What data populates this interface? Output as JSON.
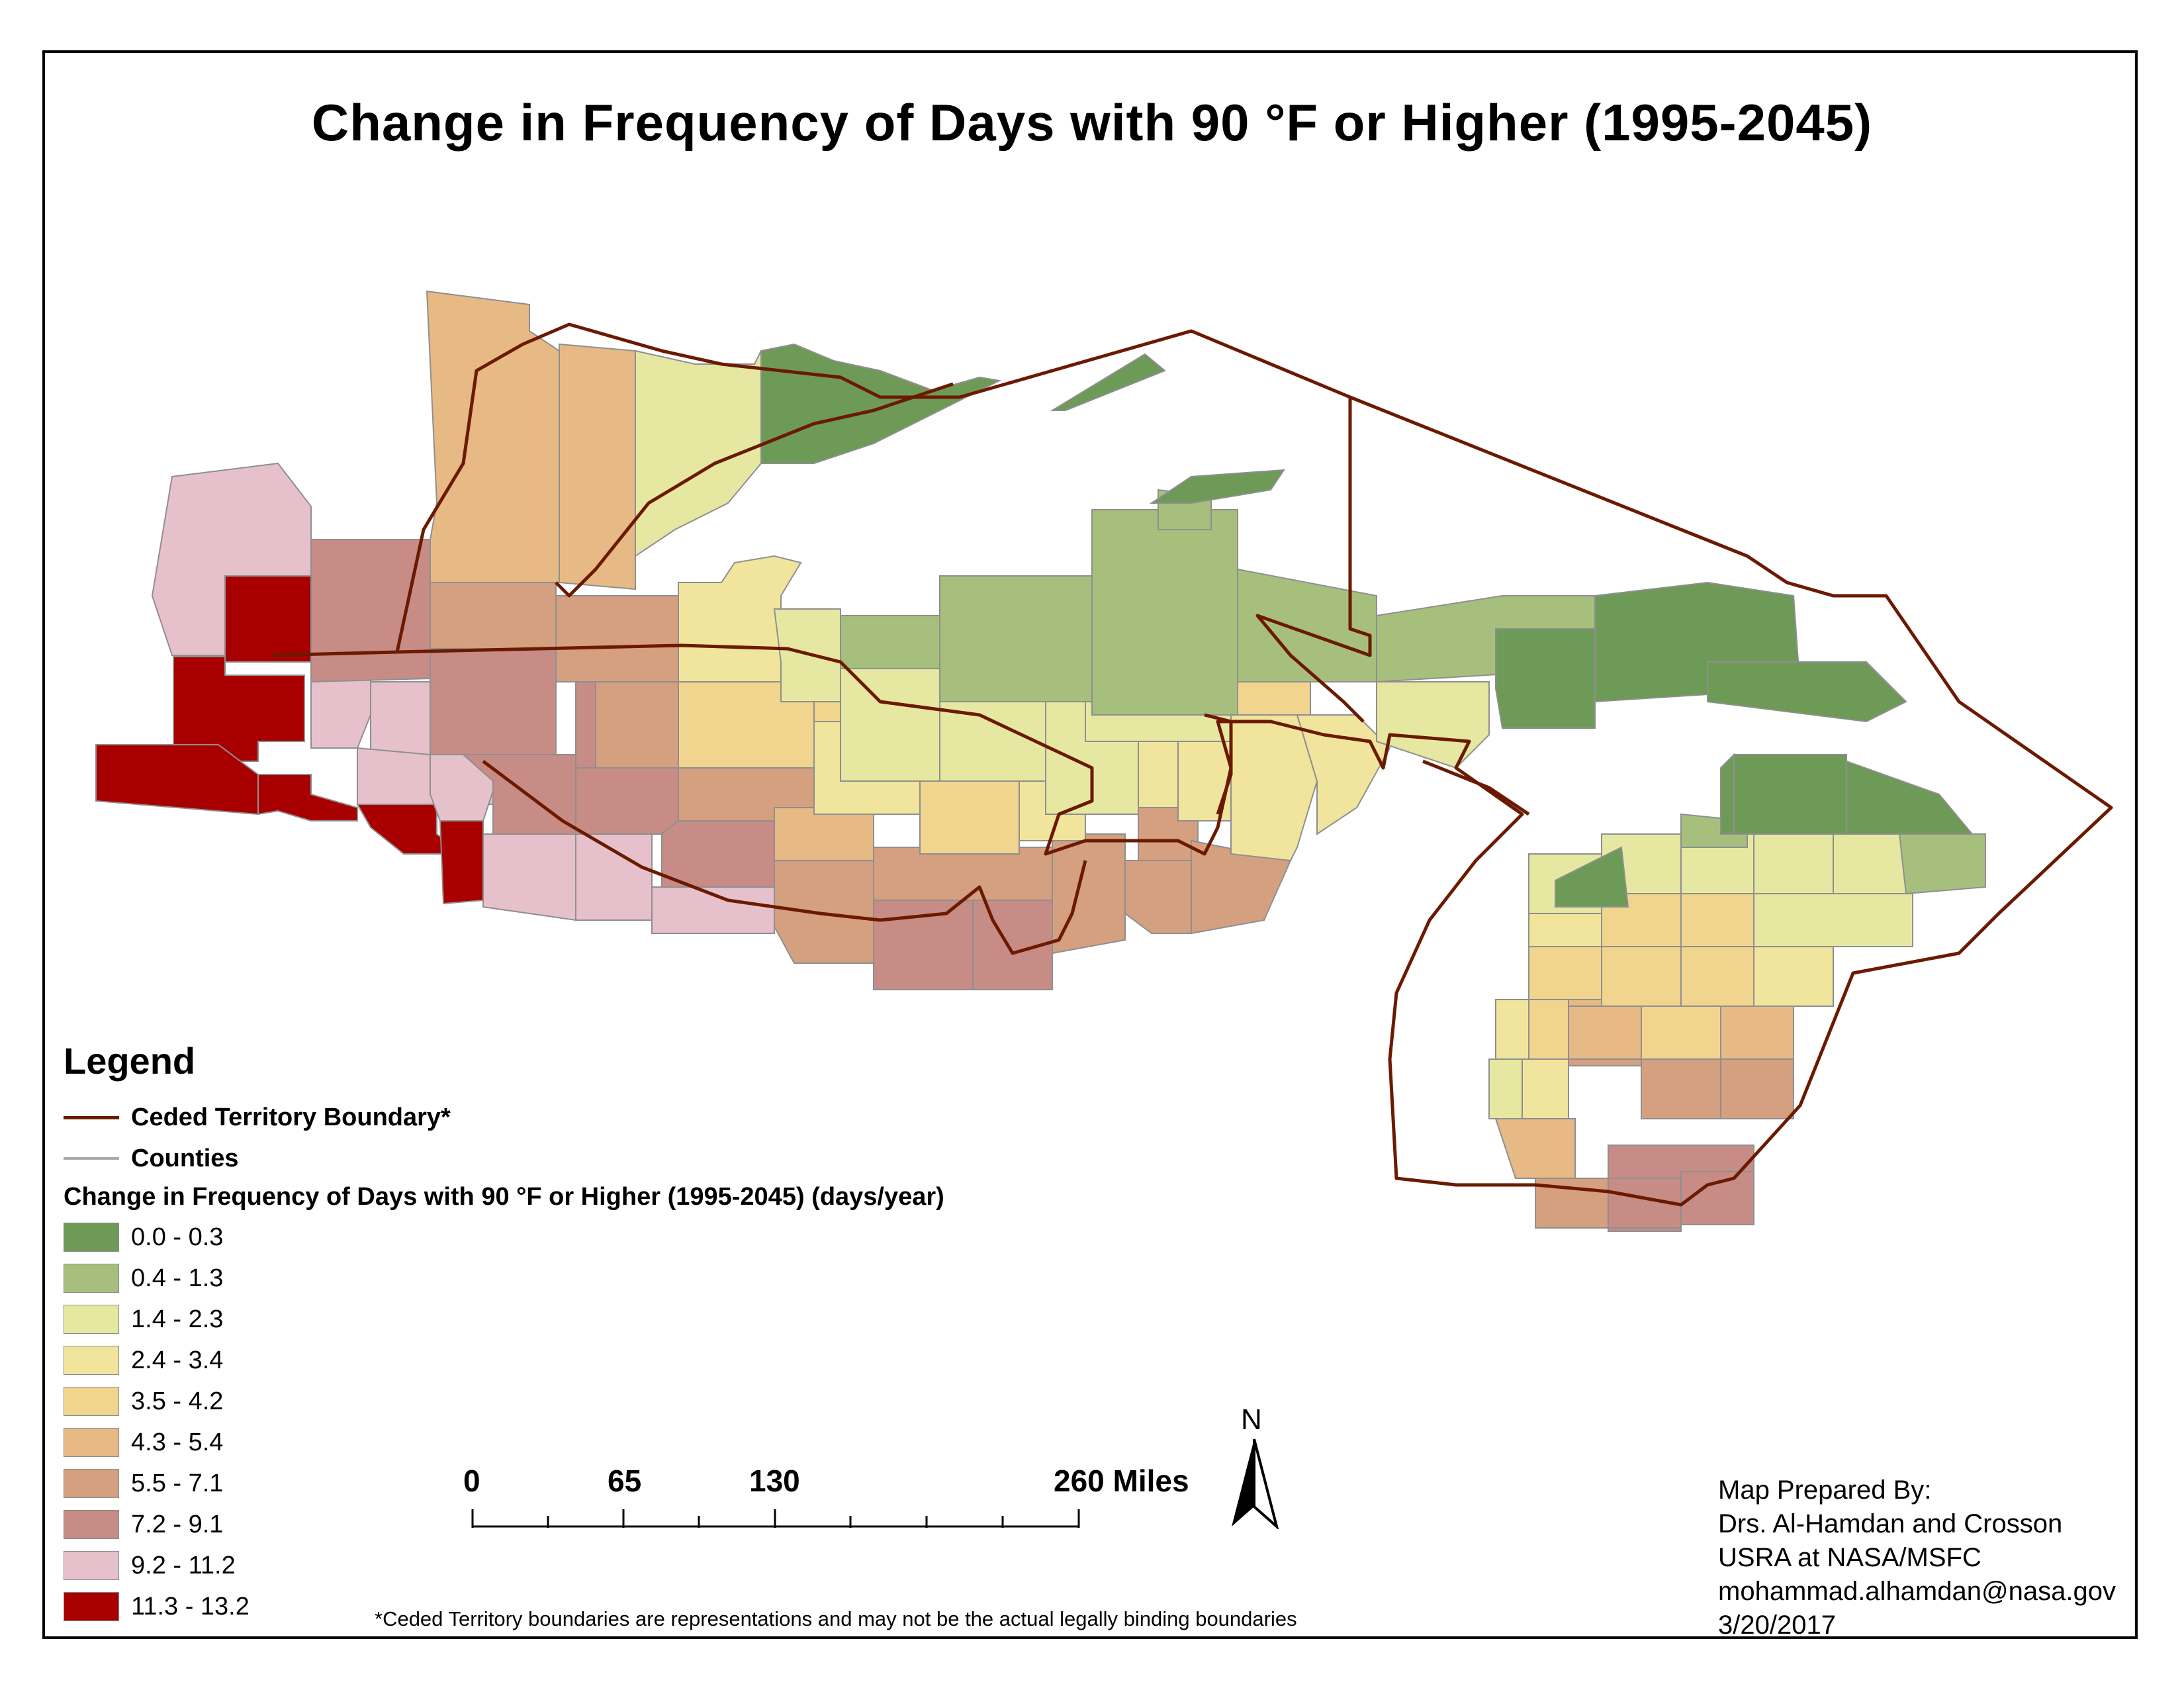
{
  "title": "Change in Frequency of Days with 90 °F or Higher (1995-2045)",
  "legend": {
    "heading": "Legend",
    "boundary_label": "Ceded Territory Boundary*",
    "counties_label": "Counties",
    "variable_label": "Change in Frequency of Days with 90 °F or Higher (1995-2045) (days/year)",
    "classes": [
      {
        "label": "0.0 - 0.3",
        "color": "#6e9a57"
      },
      {
        "label": "0.4 - 1.3",
        "color": "#a7bf7d"
      },
      {
        "label": "1.4 - 2.3",
        "color": "#e6e8a2"
      },
      {
        "label": "2.4 - 3.4",
        "color": "#f1e49c"
      },
      {
        "label": "3.5 - 4.2",
        "color": "#f1d58f"
      },
      {
        "label": "4.3 - 5.4",
        "color": "#e6b985"
      },
      {
        "label": "5.5 - 7.1",
        "color": "#d4a080"
      },
      {
        "label": "7.2 - 9.1",
        "color": "#c88c86"
      },
      {
        "label": "9.2 - 11.2",
        "color": "#e6c1cb"
      },
      {
        "label": "11.3 - 13.2",
        "color": "#a80000"
      }
    ]
  },
  "colors": {
    "boundary": "#6b1a00",
    "county_line": "#8f8f8f",
    "water": "#ffffff"
  },
  "scale_bar": {
    "ticks": [
      "0",
      "65",
      "130",
      "260 Miles"
    ]
  },
  "north_arrow": {
    "label": "N",
    "icon": "north-arrow-icon"
  },
  "credit": {
    "line1": "Map Prepared By:",
    "line2": "Drs. Al-Hamdan and Crosson",
    "line3": "USRA at NASA/MSFC",
    "line4": "mohammad.alhamdan@nasa.gov",
    "line5": "3/20/2017"
  },
  "footnote": "*Ceded Territory boundaries are representations and may not be the actual legally binding boundaries"
}
